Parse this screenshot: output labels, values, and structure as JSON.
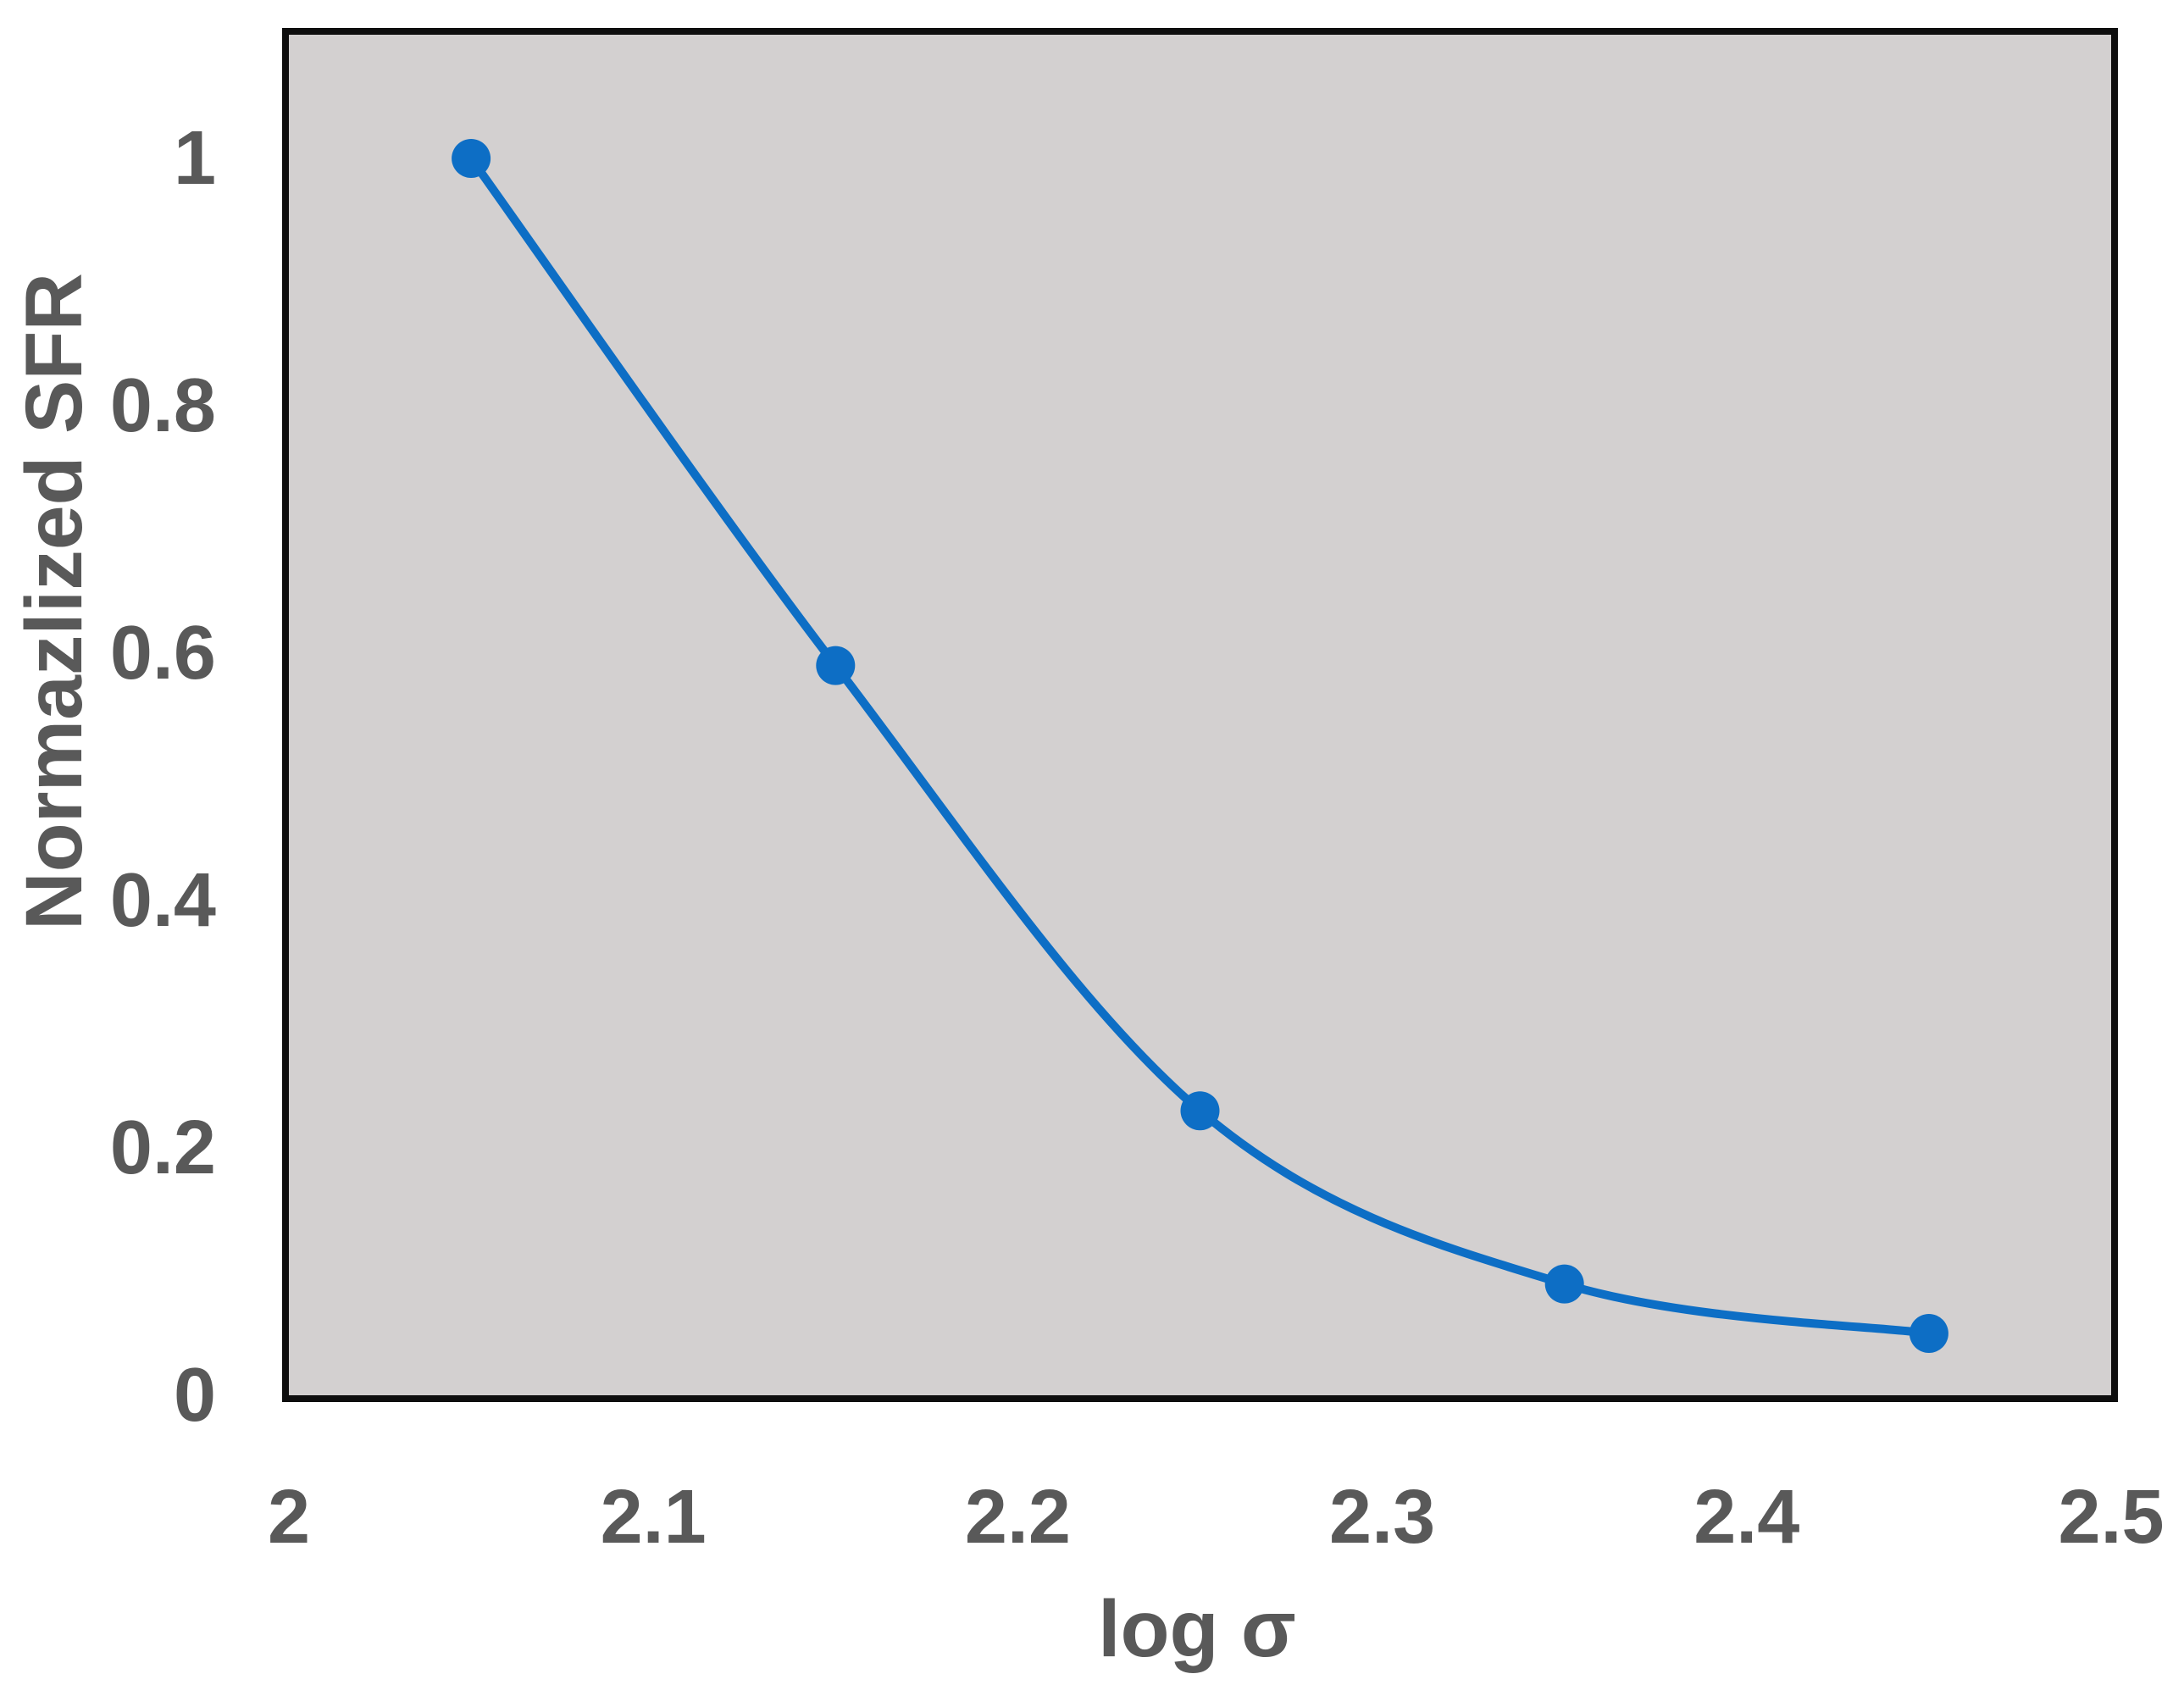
{
  "chart_data": {
    "type": "line",
    "title": "",
    "xlabel": "log σ",
    "ylabel": "Normazlized SFR",
    "x": [
      2.05,
      2.15,
      2.25,
      2.35,
      2.45
    ],
    "y": [
      1.0,
      0.59,
      0.23,
      0.09,
      0.05
    ],
    "xlim": [
      2.0,
      2.5
    ],
    "ylim": [
      0,
      1.1
    ],
    "x_ticks": [
      {
        "value": 2.0,
        "label": "2"
      },
      {
        "value": 2.1,
        "label": "2.1"
      },
      {
        "value": 2.2,
        "label": "2.2"
      },
      {
        "value": 2.3,
        "label": "2.3"
      },
      {
        "value": 2.4,
        "label": "2.4"
      },
      {
        "value": 2.5,
        "label": "2.5"
      }
    ],
    "y_ticks": [
      {
        "value": 0,
        "label": "0"
      },
      {
        "value": 0.2,
        "label": "0.2"
      },
      {
        "value": 0.4,
        "label": "0.4"
      },
      {
        "value": 0.6,
        "label": "0.6"
      },
      {
        "value": 0.8,
        "label": "0.8"
      },
      {
        "value": 1.0,
        "label": "1"
      }
    ],
    "grid": false,
    "legend_position": "none",
    "smooth_line": true,
    "marker_style": "circle",
    "colors": {
      "line": "#0d6ec5",
      "marker": "#0d6ec5",
      "plot_background": "#d3d0d0",
      "plot_border": "#0e0e0e",
      "tick_text": "#595959",
      "axis_title_text": "#595959",
      "page_background": "#ffffff"
    }
  }
}
